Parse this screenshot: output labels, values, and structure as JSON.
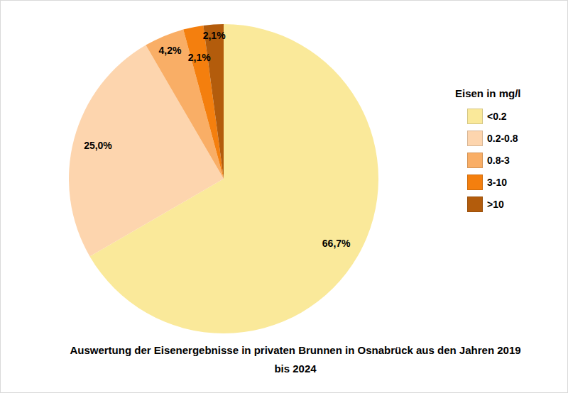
{
  "chart_data": {
    "type": "pie",
    "title": "Auswertung der Eisenergebnisse in privaten Brunnen in Osnabrück aus den Jahren 2019 bis 2024",
    "legend_title": "Eisen in mg/l",
    "legend": "right",
    "categories": [
      "<0.2",
      "0.2-0.8",
      "0.8-3",
      "3-10",
      ">10"
    ],
    "values": [
      66.7,
      25.0,
      4.2,
      2.1,
      2.1
    ],
    "value_labels": [
      "66,7%",
      "25,0%",
      "4,2%",
      "2,1%",
      "2,1%"
    ],
    "colors": [
      "#fae99a",
      "#fdd5ae",
      "#f9ae66",
      "#f47f0e",
      "#b35c0c"
    ],
    "data_labels": true
  }
}
